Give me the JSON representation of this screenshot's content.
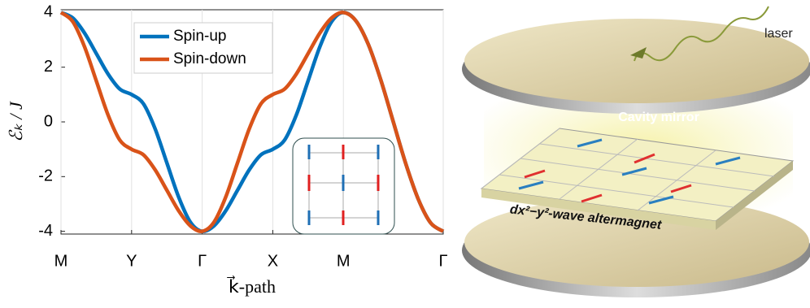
{
  "chart_data": {
    "type": "line",
    "y_label": "ℰₖ / J",
    "x_label": "k⃗-path",
    "x": [
      0,
      0.167,
      0.333,
      0.5,
      0.667,
      0.833,
      1,
      1.167,
      1.333,
      1.5,
      1.667,
      1.833,
      2,
      2.167,
      2.333,
      2.5,
      2.667,
      2.833,
      3,
      3.167,
      3.333,
      3.5,
      3.667,
      3.833,
      4,
      4.177,
      4.354,
      4.53,
      4.707,
      4.884,
      5.061,
      5.237,
      5.414
    ],
    "series": [
      {
        "name": "Spin-up",
        "color": "#0072bd",
        "values": [
          4,
          3.799,
          3.25,
          2.5,
          1.75,
          1.201,
          1,
          0.665,
          -0.25,
          -1.5,
          -2.75,
          -3.665,
          -4,
          -3.799,
          -3.25,
          -2.5,
          -1.75,
          -1.201,
          -1,
          -0.665,
          0.25,
          1.5,
          2.75,
          3.665,
          4,
          3.696,
          2.828,
          1.531,
          0,
          -1.531,
          -2.828,
          -3.696,
          -4
        ]
      },
      {
        "name": "Spin-down",
        "color": "#d95319",
        "values": [
          4,
          3.665,
          2.75,
          1.5,
          0.25,
          -0.665,
          -1,
          -1.201,
          -1.75,
          -2.5,
          -3.25,
          -3.799,
          -4,
          -3.665,
          -2.75,
          -1.5,
          -0.25,
          0.665,
          1,
          1.201,
          1.75,
          2.5,
          3.25,
          3.799,
          4,
          3.696,
          2.828,
          1.531,
          0,
          -1.531,
          -2.828,
          -3.696,
          -4
        ]
      }
    ],
    "xlim": [
      0,
      5.414
    ],
    "ylim": [
      -4.1,
      4.1
    ],
    "xticks": [
      {
        "value": 0,
        "label": "M"
      },
      {
        "value": 1,
        "label": "Y"
      },
      {
        "value": 2,
        "label": "Γ"
      },
      {
        "value": 3,
        "label": "X"
      },
      {
        "value": 4,
        "label": "M"
      },
      {
        "value": 5.414,
        "label": "Γ"
      }
    ],
    "yticks": [
      -4,
      -2,
      0,
      2,
      4
    ],
    "grid": "x",
    "legend": "top"
  },
  "illustration": {
    "laser": "laser",
    "mirror_label": "Cavity mirror",
    "material_label": "dx²−y²-wave altermagnet"
  }
}
